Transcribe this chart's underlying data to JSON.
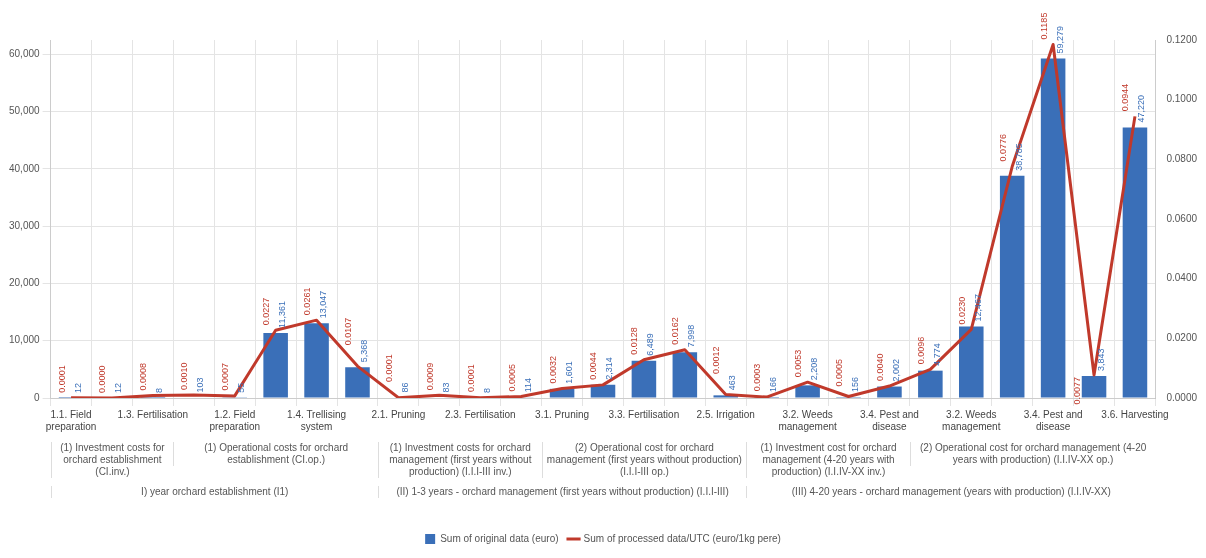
{
  "chart_data": {
    "type": "bar",
    "categories": [
      "1.1. Field preparation",
      null,
      "1.3. Fertilisation",
      null,
      "1.2. Field preparation",
      null,
      "1.4. Trellising system",
      null,
      "2.1. Pruning",
      null,
      "2.3. Fertilisation",
      null,
      "3.1. Pruning",
      null,
      "3.3. Fertilisation",
      null,
      "2.5. Irrigation",
      null,
      "3.2. Weeds management",
      null,
      "3.4. Pest and disease",
      null,
      "3.2. Weeds management",
      null,
      "3.4. Pest and disease",
      null,
      "3.6. Harvesting"
    ],
    "series": [
      {
        "name": "Sum of original data (euro)",
        "type": "bar",
        "axis": "y",
        "color": "#3a6fb8",
        "values": [
          12,
          12,
          8,
          103,
          55,
          11361,
          13047,
          5368,
          86,
          83,
          8,
          114,
          1601,
          2314,
          6489,
          7998,
          463,
          166,
          2208,
          156,
          2002,
          4774,
          12467,
          38785,
          59279,
          3843,
          47220
        ],
        "value_labels": [
          "12",
          "12",
          "8",
          "103",
          "55",
          "11,361",
          "13,047",
          "5,368",
          "86",
          "83",
          "8",
          "114",
          "1,601",
          "2,314",
          "6,489",
          "7,998",
          "463",
          "166",
          "2,208",
          "156",
          "2,002",
          "4,774",
          "12,467",
          "38,785",
          "59,279",
          "3,843",
          "47,220"
        ]
      },
      {
        "name": "Sum of processed data/UTC (euro/1kg pere)",
        "type": "line",
        "axis": "y2",
        "color": "#c0392b",
        "values": [
          0.0001,
          0.0,
          0.0008,
          0.001,
          0.0007,
          0.0227,
          0.0261,
          0.0107,
          0.0001,
          0.0009,
          0.0001,
          0.0005,
          0.0032,
          0.0044,
          0.0128,
          0.0162,
          0.0012,
          0.0003,
          0.0053,
          0.0005,
          0.004,
          0.0096,
          0.023,
          0.0776,
          0.1185,
          0.0077,
          0.0944
        ],
        "value_labels": [
          "0.0001",
          "0.0000",
          "0.0008",
          "0.0010",
          "0.0007",
          "0.0227",
          "0.0261",
          "0.0107",
          "0.0001",
          "0.0009",
          "0.0001",
          "0.0005",
          "0.0032",
          "0.0044",
          "0.0128",
          "0.0162",
          "0.0012",
          "0.0003",
          "0.0053",
          "0.0005",
          "0.0040",
          "0.0096",
          "0.0230",
          "0.0776",
          "0.1185",
          "0.0077",
          "0.0944"
        ]
      }
    ],
    "marker": "none",
    "ylim": [
      0,
      62500
    ],
    "yticks": [
      0,
      {
        "value": 10000,
        "label": "10,000"
      },
      {
        "value": 20000,
        "label": "20,000"
      },
      {
        "value": 30000,
        "label": "30,000"
      },
      {
        "value": 40000,
        "label": "40,000"
      },
      {
        "value": 50000,
        "label": "50,000"
      },
      {
        "value": 60000,
        "label": "60,000"
      }
    ],
    "y2lim": [
      0,
      0.12
    ],
    "y2ticks": [
      {
        "value": 0,
        "label": "0.0000"
      },
      {
        "value": 0.02,
        "label": "0.0200"
      },
      {
        "value": 0.04,
        "label": "0.0400"
      },
      {
        "value": 0.06,
        "label": "0.0600"
      },
      {
        "value": 0.08,
        "label": "0.0800"
      },
      {
        "value": 0.1,
        "label": "0.1000"
      },
      {
        "value": 0.12,
        "label": "0.1200"
      }
    ],
    "grid": true,
    "legend": "bottom",
    "annotations": [
      "(1) Investment costs for orchard establishment (CI.inv.)",
      "(1) Operational costs for orchard establishment (CI.op.)",
      "(1) Investment costs for orchard management (first years without production) (I.I.I-III inv.)",
      "(2) Operational cost for orchard management (first years without production) (I.I.I-III op.)",
      "(1) Investment cost for orchard management (4-20 years with production) (I.I.IV-XX inv.)",
      "(2) Operational cost for orchard management (4-20 years with production) (I.I.IV-XX op.)",
      "I) year orchard establishment (I1)",
      "(II) 1-3 years - orchard management (first years without production) (I.I.I-III)",
      "(III) 4-20 years - orchard management (years with production) (I.I.IV-XX)"
    ]
  }
}
